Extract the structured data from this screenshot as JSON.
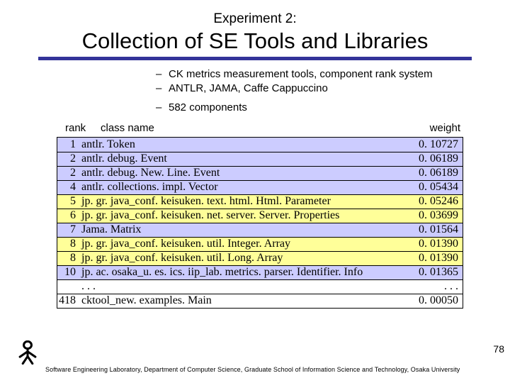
{
  "title": {
    "super": "Experiment 2:",
    "main": "Collection of SE Tools and Libraries"
  },
  "accent_color": "#333399",
  "bullets": [
    "CK metrics measurement tools, component rank system",
    " ANTLR, JAMA, Caffe Cappuccino",
    "582 components"
  ],
  "headers": {
    "rank": "rank",
    "name": "class name",
    "weight": "weight"
  },
  "row_colors": {
    "blue": "#ccccff",
    "yellow": "#ffff99",
    "none": "#ffffff"
  },
  "rows": [
    {
      "rank": "1",
      "name": "antlr. Token",
      "weight": "0. 10727",
      "bg": "blue"
    },
    {
      "rank": "2",
      "name": "antlr. debug. Event",
      "weight": "0. 06189",
      "bg": "blue"
    },
    {
      "rank": "2",
      "name": "antlr. debug. New. Line. Event",
      "weight": "0. 06189",
      "bg": "blue"
    },
    {
      "rank": "4",
      "name": "antlr. collections. impl. Vector",
      "weight": "0. 05434",
      "bg": "blue"
    },
    {
      "rank": "5",
      "name": "jp. gr. java_conf. keisuken. text. html. Html. Parameter",
      "weight": "0. 05246",
      "bg": "yellow"
    },
    {
      "rank": "6",
      "name": "jp. gr. java_conf. keisuken. net. server. Server. Properties",
      "weight": "0. 03699",
      "bg": "yellow"
    },
    {
      "rank": "7",
      "name": "Jama. Matrix",
      "weight": "0. 01564",
      "bg": "blue"
    },
    {
      "rank": "8",
      "name": " jp. gr. java_conf. keisuken. util. Integer. Array",
      "weight": "0. 01390",
      "bg": "yellow"
    },
    {
      "rank": "8",
      "name": " jp. gr. java_conf. keisuken. util. Long. Array",
      "weight": "0. 01390",
      "bg": "yellow"
    },
    {
      "rank": "10",
      "name": "jp. ac. osaka_u. es. ics. iip_lab. metrics. parser. Identifier. Info",
      "weight": "0. 01365",
      "bg": "blue"
    },
    {
      "rank": "",
      "name": ". . .",
      "weight": ". . .",
      "bg": "none"
    },
    {
      "rank": "418",
      "name": "cktool_new. examples. Main",
      "weight": "0. 00050",
      "bg": "none"
    }
  ],
  "footer": "Software Engineering Laboratory, Department of Computer Science, Graduate School of Information Science and Technology, Osaka University",
  "page": "78"
}
